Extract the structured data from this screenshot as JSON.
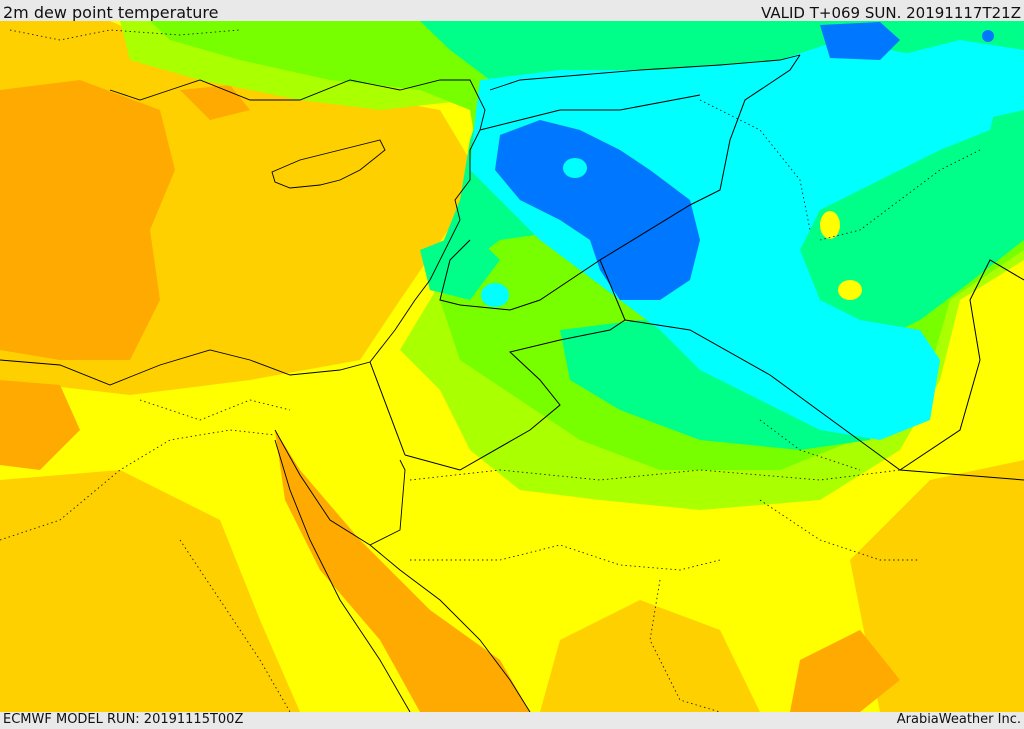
{
  "header": {
    "title": "2m dew point temperature",
    "valid": "VALID T+069 SUN. 20191117T21Z"
  },
  "footer": {
    "model_run": "ECMWF MODEL RUN: 20191115T00Z",
    "credit": "ArabiaWeather Inc."
  },
  "palette": {
    "orange": "#ffaa00",
    "gold": "#ffd000",
    "yellow": "#ffff00",
    "lime": "#aaff00",
    "green": "#77ff00",
    "spring": "#00ff88",
    "cyan": "#00ffff",
    "blue": "#0077ff"
  }
}
